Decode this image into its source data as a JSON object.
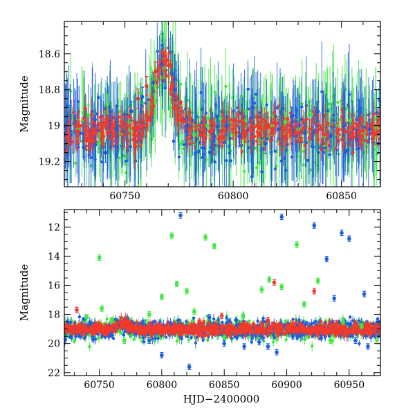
{
  "chart_data": [
    {
      "type": "scatter",
      "panel": "top",
      "xlabel": "",
      "ylabel": "Magnitude",
      "xlim": [
        60722,
        60868
      ],
      "ylim": [
        19.34,
        18.42
      ],
      "y_inverted": true,
      "xticks": [
        60750,
        60800,
        60850
      ],
      "xtick_labels": [
        "60750",
        "60800",
        "60850"
      ],
      "yticks": [
        18.6,
        18.8,
        19.0,
        19.2
      ],
      "ytick_labels": [
        "18.6",
        "18.8",
        "19",
        "19.2"
      ],
      "grid": false,
      "errorbars": true,
      "series": [
        {
          "color": "#3fe83f",
          "x": [
            60728,
            60733,
            60738,
            60742,
            60748,
            60752,
            60757,
            60764,
            60768,
            60771,
            60776,
            60782,
            60788,
            60794,
            60800,
            60806,
            60812,
            60818,
            60824,
            60830,
            60836,
            60842,
            60848,
            60854,
            60860,
            60866
          ],
          "y": [
            19.02,
            18.94,
            19.1,
            18.88,
            19.05,
            18.98,
            18.82,
            18.74,
            18.68,
            18.9,
            19.1,
            19.05,
            19.0,
            18.96,
            19.05,
            18.92,
            19.08,
            19.0,
            18.98,
            19.02,
            18.94,
            19.06,
            19.0,
            18.97,
            19.04,
            19.01
          ]
        },
        {
          "color": "#1d5ee0",
          "x": [
            60725,
            60731,
            60736,
            60741,
            60746,
            60753,
            60758,
            60763,
            60767,
            60773,
            60779,
            60785,
            60791,
            60797,
            60803,
            60809,
            60815,
            60821,
            60827,
            60833,
            60839,
            60845,
            60851,
            60857,
            60863,
            60867
          ],
          "y": [
            19.05,
            19.12,
            19.0,
            19.15,
            19.02,
            18.92,
            18.84,
            18.76,
            18.66,
            18.8,
            19.0,
            19.04,
            19.08,
            19.0,
            19.06,
            18.9,
            19.1,
            19.02,
            18.95,
            19.04,
            18.92,
            19.06,
            19.0,
            19.08,
            19.02,
            19.1
          ]
        },
        {
          "color": "#f23a2b",
          "x": [
            60724,
            60728,
            60732,
            60736,
            60740,
            60744,
            60748,
            60752,
            60756,
            60760,
            60764,
            60768,
            60772,
            60776,
            60780,
            60785,
            60790,
            60795,
            60800,
            60806,
            60812,
            60818,
            60824,
            60830,
            60836,
            60842,
            60848,
            60854,
            60860,
            60866
          ],
          "y": [
            19.05,
            19.03,
            19.08,
            19.04,
            19.06,
            19.02,
            19.0,
            18.95,
            18.85,
            18.78,
            18.7,
            18.64,
            18.78,
            18.92,
            19.02,
            19.05,
            19.03,
            19.06,
            19.02,
            19.04,
            19.05,
            19.03,
            19.06,
            19.04,
            19.02,
            19.05,
            19.04,
            19.06,
            19.03,
            19.05
          ]
        }
      ]
    },
    {
      "type": "scatter",
      "panel": "bottom",
      "xlabel": "HJD−2400000",
      "ylabel": "Magnitude",
      "xlim": [
        60722,
        60975
      ],
      "ylim": [
        22.2,
        10.8
      ],
      "y_inverted": true,
      "xticks": [
        60750,
        60800,
        60850,
        60900,
        60950
      ],
      "xtick_labels": [
        "60750",
        "60800",
        "60850",
        "60900",
        "60950"
      ],
      "yticks": [
        12,
        14,
        16,
        18,
        20,
        22
      ],
      "ytick_labels": [
        "12",
        "14",
        "16",
        "18",
        "20",
        "22"
      ],
      "grid": false,
      "errorbars": true,
      "series": [
        {
          "color": "#3fe83f",
          "x": [
            60740,
            60750,
            60752,
            60760,
            60770,
            60790,
            60800,
            60808,
            60812,
            60820,
            60826,
            60835,
            60842,
            60850,
            60865,
            60880,
            60886,
            60896,
            60908,
            60914,
            60925,
            60935,
            60945,
            60960
          ],
          "y": [
            18.2,
            14.1,
            17.6,
            18.4,
            19.8,
            18.0,
            16.8,
            12.6,
            15.9,
            16.4,
            17.8,
            12.7,
            13.3,
            19.6,
            18.1,
            16.3,
            15.6,
            16.1,
            13.2,
            17.3,
            15.7,
            19.8,
            18.5,
            18.8
          ]
        },
        {
          "color": "#1d5ee0",
          "x": [
            60745,
            60760,
            60790,
            60800,
            60815,
            60822,
            60838,
            60850,
            60866,
            60878,
            60885,
            60892,
            60896,
            60905,
            60922,
            60932,
            60938,
            60944,
            60950,
            60955,
            60962,
            60965
          ],
          "y": [
            19.7,
            19.4,
            19.8,
            20.8,
            11.2,
            21.6,
            18.2,
            20.0,
            20.2,
            19.9,
            20.2,
            20.6,
            11.3,
            19.5,
            11.9,
            14.2,
            16.9,
            12.4,
            12.8,
            19.8,
            16.6,
            20.2
          ]
        },
        {
          "color": "#f23a2b",
          "x": [
            60732,
            60750,
            60770,
            60790,
            60810,
            60830,
            60848,
            60868,
            60885,
            60890,
            60905,
            60922,
            60940,
            60955,
            60965
          ],
          "y": [
            17.7,
            18.7,
            18.6,
            18.8,
            19.0,
            18.5,
            18.1,
            18.7,
            18.4,
            15.8,
            18.7,
            16.4,
            18.6,
            18.6,
            18.7
          ]
        }
      ]
    }
  ]
}
